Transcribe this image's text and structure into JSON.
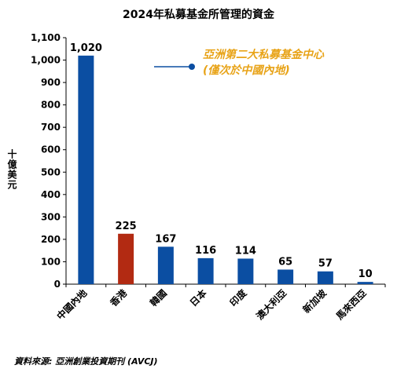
{
  "chart_data": {
    "type": "bar",
    "title": "2024年私募基金所管理的資金",
    "ylabel": "十億美元",
    "xlabel": "",
    "ylim": [
      0,
      1100
    ],
    "yticks": [
      0,
      100,
      200,
      300,
      400,
      500,
      600,
      700,
      800,
      900,
      1000,
      1100
    ],
    "ytick_labels": [
      "0",
      "100",
      "200",
      "300",
      "400",
      "500",
      "600",
      "700",
      "800",
      "900",
      "1,000",
      "1,100"
    ],
    "categories": [
      "中國內地",
      "香港",
      "韓國",
      "日本",
      "印度",
      "澳大利亞",
      "新加坡",
      "馬來西亞"
    ],
    "values": [
      1020,
      225,
      167,
      116,
      114,
      65,
      57,
      10
    ],
    "value_labels": [
      "1,020",
      "225",
      "167",
      "116",
      "114",
      "65",
      "57",
      "10"
    ],
    "bar_colors": [
      "#0B4EA2",
      "#B22A12",
      "#0B4EA2",
      "#0B4EA2",
      "#0B4EA2",
      "#0B4EA2",
      "#0B4EA2",
      "#0B4EA2"
    ],
    "grid": false,
    "annotation": {
      "line1": "亞洲第二大私募基金中心",
      "line2": "(僅次於中國內地)",
      "color": "#E8A317",
      "marker_color": "#0B4EA2"
    },
    "source": "資料來源: 亞洲創業投資期刊 (AVCJ)"
  }
}
